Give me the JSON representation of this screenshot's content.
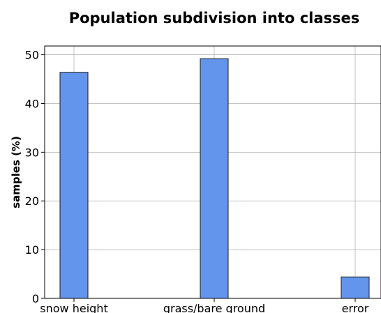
{
  "chart_data": {
    "type": "bar",
    "title": "Population subdivision into classes",
    "xlabel": "",
    "ylabel": "samples (%)",
    "categories": [
      "snow height",
      "grass/bare ground",
      "error"
    ],
    "values": [
      46.4,
      49.2,
      4.4
    ],
    "ylim": [
      0,
      51.8
    ],
    "yticks": [
      0,
      10,
      20,
      30,
      40,
      50
    ],
    "grid": true,
    "bar_color": "#6495ed",
    "edge_color": "#1a1a1a"
  }
}
